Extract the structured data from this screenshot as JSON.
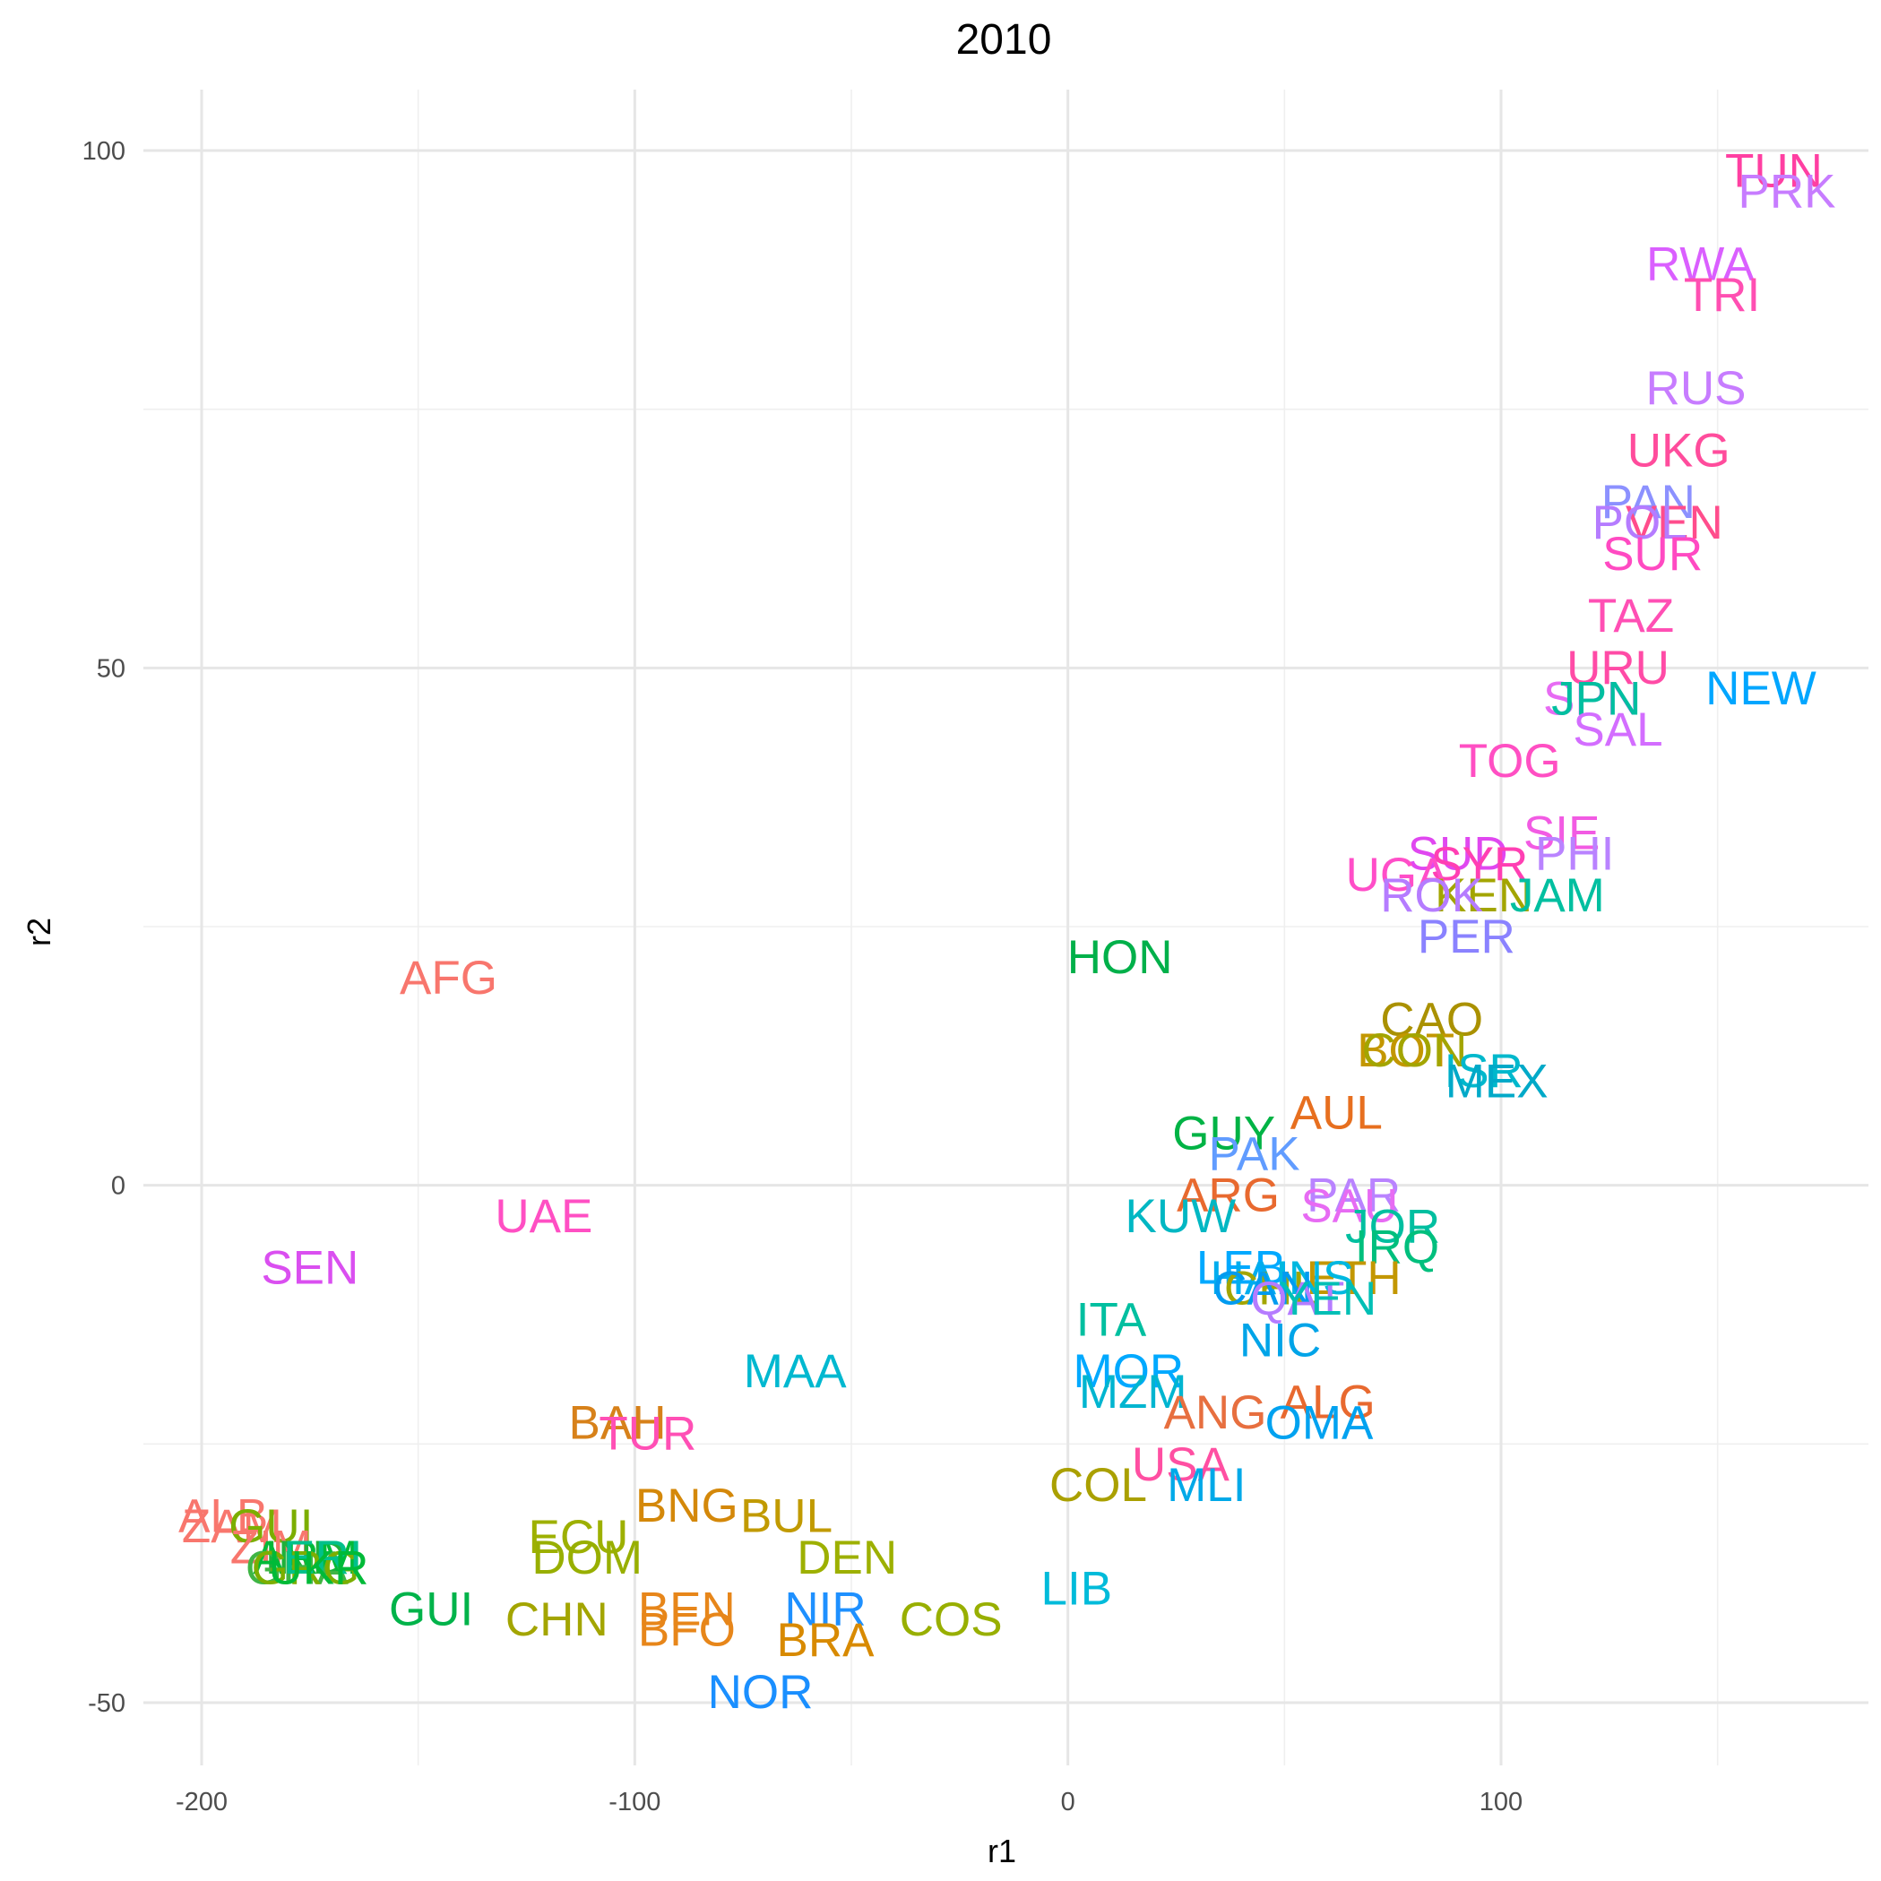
{
  "chart_data": {
    "type": "scatter",
    "title": "2010",
    "xlabel": "r1",
    "ylabel": "r2",
    "xlim": [
      -210,
      185
    ],
    "ylim": [
      -56,
      108
    ],
    "x_ticks": [
      -200,
      -100,
      0,
      100
    ],
    "y_ticks": [
      -50,
      0,
      50,
      100
    ],
    "x_tick_labels": [
      "-200",
      "-100",
      "0",
      "100"
    ],
    "y_tick_labels": [
      "-50",
      "0",
      "50",
      "100"
    ],
    "grid": true,
    "legend": "none",
    "points": [
      {
        "label": "TUN",
        "x": 163,
        "y": 98,
        "color": "#FF3FA2"
      },
      {
        "label": "PRK",
        "x": 166,
        "y": 96,
        "color": "#C77CFF"
      },
      {
        "label": "RWA",
        "x": 146,
        "y": 89,
        "color": "#DA5FFF"
      },
      {
        "label": "TRI",
        "x": 151,
        "y": 86,
        "color": "#FF4FB2"
      },
      {
        "label": "RUS",
        "x": 145,
        "y": 77,
        "color": "#C77CFF"
      },
      {
        "label": "UKG",
        "x": 141,
        "y": 71,
        "color": "#FF4C9C"
      },
      {
        "label": "PAN",
        "x": 134,
        "y": 66,
        "color": "#8C91FF"
      },
      {
        "label": "VEN",
        "x": 140,
        "y": 64,
        "color": "#FF4D8C"
      },
      {
        "label": "POL",
        "x": 132,
        "y": 64,
        "color": "#B57CFF"
      },
      {
        "label": "SUR",
        "x": 135,
        "y": 61,
        "color": "#FF4AC2"
      },
      {
        "label": "TAZ",
        "x": 130,
        "y": 55,
        "color": "#FF4FB4"
      },
      {
        "label": "URU",
        "x": 127,
        "y": 50,
        "color": "#FF4BA6"
      },
      {
        "label": "NEW",
        "x": 160,
        "y": 48,
        "color": "#00A6FF"
      },
      {
        "label": "SPN",
        "x": 121,
        "y": 47,
        "color": "#E76BF3"
      },
      {
        "label": "JPN",
        "x": 122,
        "y": 47,
        "color": "#00BFA0"
      },
      {
        "label": "SAL",
        "x": 127,
        "y": 44,
        "color": "#D36DFF"
      },
      {
        "label": "TOG",
        "x": 102,
        "y": 41,
        "color": "#FF4FC3"
      },
      {
        "label": "SIE",
        "x": 114,
        "y": 34,
        "color": "#F25BE3"
      },
      {
        "label": "PHI",
        "x": 117,
        "y": 32,
        "color": "#B983FF"
      },
      {
        "label": "SUD",
        "x": 90,
        "y": 32,
        "color": "#E047F0"
      },
      {
        "label": "SYR",
        "x": 95,
        "y": 31,
        "color": "#FF3FB3"
      },
      {
        "label": "UGA",
        "x": 76,
        "y": 30,
        "color": "#FF4EC8"
      },
      {
        "label": "KEN",
        "x": 96,
        "y": 28,
        "color": "#A3A500"
      },
      {
        "label": "ROK",
        "x": 84,
        "y": 28,
        "color": "#B57CFF"
      },
      {
        "label": "JAM",
        "x": 113,
        "y": 28,
        "color": "#00BFA0"
      },
      {
        "label": "PER",
        "x": 92,
        "y": 24,
        "color": "#8A82FF"
      },
      {
        "label": "HON",
        "x": 12,
        "y": 22,
        "color": "#00B04A"
      },
      {
        "label": "AFG",
        "x": -143,
        "y": 20,
        "color": "#F8766D"
      },
      {
        "label": "CAO",
        "x": 84,
        "y": 16,
        "color": "#AA9100"
      },
      {
        "label": "BOT",
        "x": 78,
        "y": 13,
        "color": "#C39700"
      },
      {
        "label": "CON",
        "x": 80,
        "y": 13,
        "color": "#A3A500"
      },
      {
        "label": "ISR",
        "x": 96,
        "y": 11,
        "color": "#00B8CC"
      },
      {
        "label": "MEX",
        "x": 99,
        "y": 10,
        "color": "#00A9C8"
      },
      {
        "label": "AUL",
        "x": 62,
        "y": 7,
        "color": "#E76F1F"
      },
      {
        "label": "GUY",
        "x": 36,
        "y": 5,
        "color": "#00B345"
      },
      {
        "label": "PAK",
        "x": 43,
        "y": 3,
        "color": "#619CFF"
      },
      {
        "label": "ARG",
        "x": 37,
        "y": -1,
        "color": "#E8692F"
      },
      {
        "label": "PAR",
        "x": 66,
        "y": -1,
        "color": "#B983FF"
      },
      {
        "label": "SAU",
        "x": 65,
        "y": -2,
        "color": "#E76BF3"
      },
      {
        "label": "KUW",
        "x": 26,
        "y": -3,
        "color": "#00B7C3"
      },
      {
        "label": "UAE",
        "x": -121,
        "y": -3,
        "color": "#FF4FC3"
      },
      {
        "label": "JOR",
        "x": 75,
        "y": -4,
        "color": "#00BFA0"
      },
      {
        "label": "IRQ",
        "x": 76,
        "y": -6,
        "color": "#00BF7D"
      },
      {
        "label": "SEN",
        "x": -175,
        "y": -8,
        "color": "#DA4FF0"
      },
      {
        "label": "LEB",
        "x": 40,
        "y": -8,
        "color": "#00A9FF"
      },
      {
        "label": "ETH",
        "x": 66,
        "y": -9,
        "color": "#C39700"
      },
      {
        "label": "HAI",
        "x": 42,
        "y": -9,
        "color": "#00ADEE"
      },
      {
        "label": "CHL",
        "x": 47,
        "y": -10,
        "color": "#A3A500"
      },
      {
        "label": "INS",
        "x": 57,
        "y": -9,
        "color": "#00B8E0"
      },
      {
        "label": "CAN",
        "x": 45,
        "y": -10,
        "color": "#009BF0"
      },
      {
        "label": "QAT",
        "x": 53,
        "y": -11,
        "color": "#B57CFF"
      },
      {
        "label": "YEN",
        "x": 60,
        "y": -11,
        "color": "#00BFB5"
      },
      {
        "label": "ITA",
        "x": 10,
        "y": -13,
        "color": "#00BFA0"
      },
      {
        "label": "NIC",
        "x": 49,
        "y": -15,
        "color": "#00A4E8"
      },
      {
        "label": "MAA",
        "x": -63,
        "y": -18,
        "color": "#00B8D0"
      },
      {
        "label": "MOR",
        "x": 14,
        "y": -18,
        "color": "#00A9FF"
      },
      {
        "label": "MZM",
        "x": 15,
        "y": -20,
        "color": "#00B5D0"
      },
      {
        "label": "ALG",
        "x": 60,
        "y": -21,
        "color": "#E8692F"
      },
      {
        "label": "ANG",
        "x": 34,
        "y": -22,
        "color": "#E76F3F"
      },
      {
        "label": "OMA",
        "x": 58,
        "y": -23,
        "color": "#00A2F0"
      },
      {
        "label": "BAH",
        "x": -104,
        "y": -23,
        "color": "#D7811A"
      },
      {
        "label": "TUR",
        "x": -97,
        "y": -24,
        "color": "#FF4FB5"
      },
      {
        "label": "USA",
        "x": 26,
        "y": -27,
        "color": "#FF4FA2"
      },
      {
        "label": "COL",
        "x": 7,
        "y": -29,
        "color": "#AAA000"
      },
      {
        "label": "MLI",
        "x": 32,
        "y": -29,
        "color": "#00A9E8"
      },
      {
        "label": "ALB",
        "x": -195,
        "y": -32,
        "color": "#F8766D"
      },
      {
        "label": "ZAM",
        "x": -193,
        "y": -33,
        "color": "#F8766D"
      },
      {
        "label": "BNG",
        "x": -88,
        "y": -31,
        "color": "#D4880A"
      },
      {
        "label": "BUL",
        "x": -65,
        "y": -32,
        "color": "#C19A00"
      },
      {
        "label": "ECU",
        "x": -113,
        "y": -34,
        "color": "#9DB000"
      },
      {
        "label": "DEN",
        "x": -51,
        "y": -36,
        "color": "#9DB000"
      },
      {
        "label": "DOM",
        "x": -111,
        "y": -36,
        "color": "#98AF00"
      },
      {
        "label": "LIB",
        "x": 2,
        "y": -39,
        "color": "#00BBDA"
      },
      {
        "label": "GUI",
        "x": -147,
        "y": -41,
        "color": "#00B34A"
      },
      {
        "label": "CHN",
        "x": -118,
        "y": -42,
        "color": "#A3A500"
      },
      {
        "label": "BEN",
        "x": -88,
        "y": -41,
        "color": "#E7861A"
      },
      {
        "label": "NIR",
        "x": -56,
        "y": -41,
        "color": "#1E90FF"
      },
      {
        "label": "COS",
        "x": -27,
        "y": -42,
        "color": "#98AF00"
      },
      {
        "label": "BFO",
        "x": -88,
        "y": -43,
        "color": "#E7861A"
      },
      {
        "label": "BRA",
        "x": -56,
        "y": -44,
        "color": "#D88A00"
      },
      {
        "label": "NOR",
        "x": -71,
        "y": -49,
        "color": "#1A8FFF"
      },
      {
        "label": "GUI",
        "x": -184,
        "y": -33,
        "color": "#7CAE00"
      },
      {
        "label": "ZIM",
        "x": -184,
        "y": -35,
        "color": "#F8766D"
      },
      {
        "label": "IND",
        "x": -176,
        "y": -36,
        "color": "#1FB03A"
      },
      {
        "label": "ARM",
        "x": -176,
        "y": -36,
        "color": "#00BA38"
      },
      {
        "label": "GHA",
        "x": -178,
        "y": -37,
        "color": "#3FB545"
      },
      {
        "label": "GRG",
        "x": -176,
        "y": -37,
        "color": "#7CAE00"
      },
      {
        "label": "ERI",
        "x": -172,
        "y": -36,
        "color": "#00C08B"
      },
      {
        "label": "UKR",
        "x": -173,
        "y": -37,
        "color": "#00BA38"
      }
    ]
  }
}
